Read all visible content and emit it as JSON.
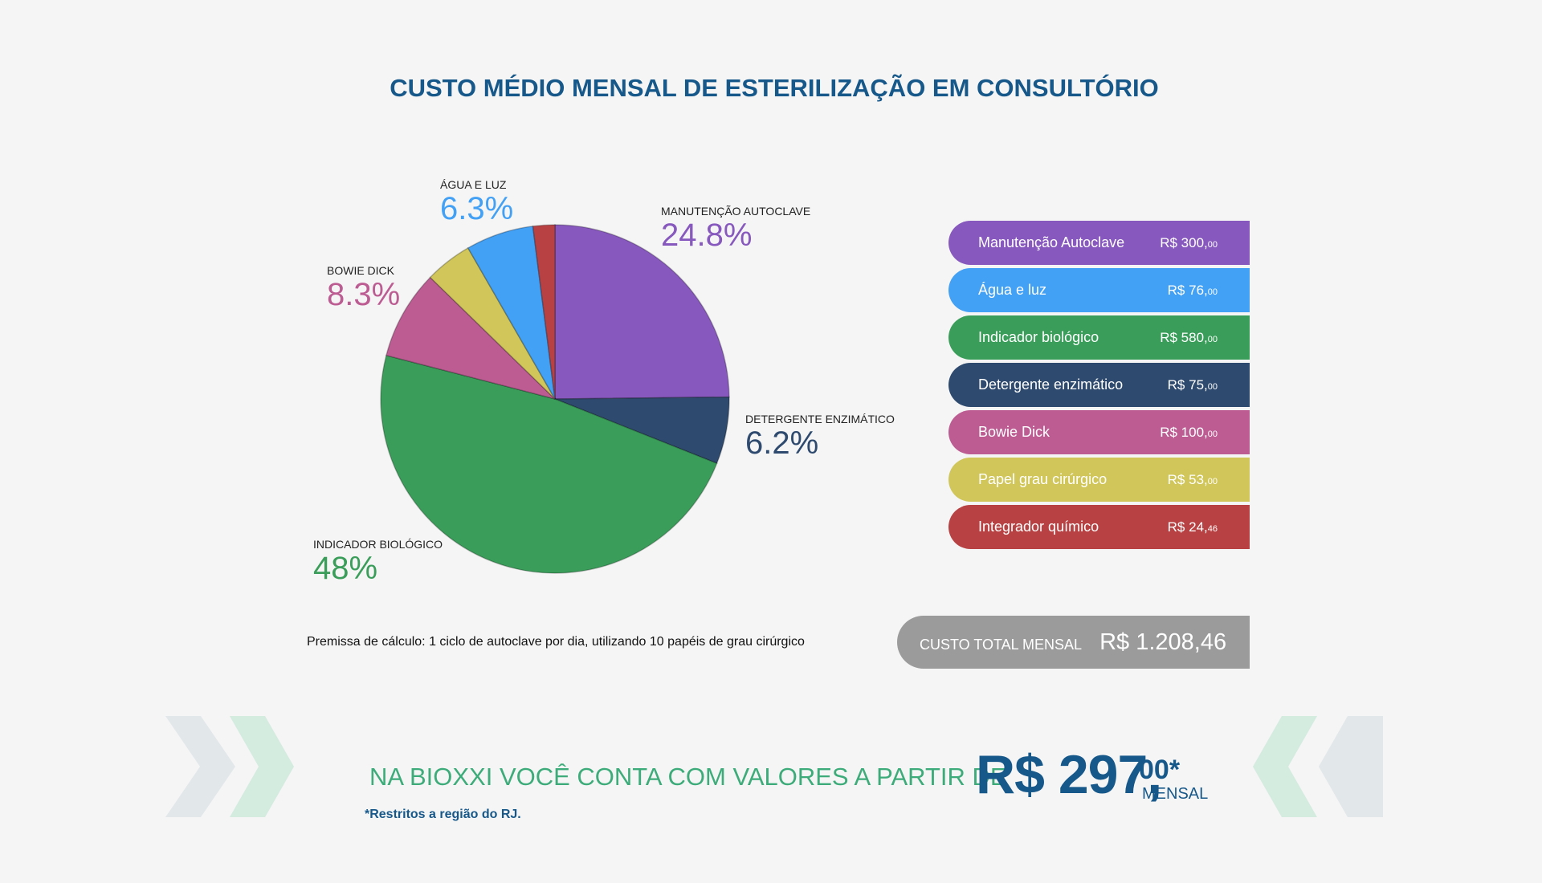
{
  "title": "CUSTO MÉDIO MENSAL DE ESTERILIZAÇÃO EM CONSULTÓRIO",
  "chart_data": {
    "type": "pie",
    "title": "CUSTO MÉDIO MENSAL DE ESTERILIZAÇÃO EM CONSULTÓRIO",
    "slices": [
      {
        "label": "Manutenção Autoclave",
        "value": 300.0,
        "percent": 24.8,
        "color": "#8758bd"
      },
      {
        "label": "Detergente enzimático",
        "value": 75.0,
        "percent": 6.2,
        "color": "#2e4a6e"
      },
      {
        "label": "Indicador biológico",
        "value": 580.0,
        "percent": 48,
        "color": "#3a9e5a"
      },
      {
        "label": "Bowie Dick",
        "value": 100.0,
        "percent": 8.3,
        "color": "#bc5c93"
      },
      {
        "label": "Papel grau cirúrgico",
        "value": 53.0,
        "percent": 4.4,
        "color": "#d0c65a"
      },
      {
        "label": "Água e luz",
        "value": 76.0,
        "percent": 6.3,
        "color": "#42a0f5"
      },
      {
        "label": "Integrador químico",
        "value": 24.46,
        "percent": 2.0,
        "color": "#b84243"
      }
    ]
  },
  "pie_labels": {
    "agua": {
      "caption": "ÁGUA E LUZ",
      "pct": "6.3%"
    },
    "manutencao": {
      "caption": "MANUTENÇÃO AUTOCLAVE",
      "pct": "24.8%"
    },
    "bowie": {
      "caption": "BOWIE DICK",
      "pct": "8.3%"
    },
    "detergente": {
      "caption": "DETERGENTE ENZIMÁTICO",
      "pct": "6.2%"
    },
    "indicador": {
      "caption": "INDICADOR BIOLÓGICO",
      "pct": "48%"
    }
  },
  "legend": [
    {
      "name": "Manutenção Autoclave",
      "value": "R$ 300,",
      "cents": "00",
      "color": "#8758bd"
    },
    {
      "name": "Água e luz",
      "value": "R$ 76,",
      "cents": "00",
      "color": "#42a0f5"
    },
    {
      "name": "Indicador biológico",
      "value": "R$ 580,",
      "cents": "00",
      "color": "#3a9e5a"
    },
    {
      "name": "Detergente enzimático",
      "value": "R$ 75,",
      "cents": "00",
      "color": "#2e4a6e"
    },
    {
      "name": "Bowie Dick",
      "value": "R$ 100,",
      "cents": "00",
      "color": "#bc5c93"
    },
    {
      "name": "Papel grau cirúrgico",
      "value": "R$ 53,",
      "cents": "00",
      "color": "#d0c65a"
    },
    {
      "name": "Integrador químico",
      "value": "R$ 24,",
      "cents": "46",
      "color": "#b84243"
    }
  ],
  "premise": "Premissa de cálculo: 1 ciclo de autoclave por dia, utilizando 10 papéis de grau cirúrgico",
  "total": {
    "label": "CUSTO TOTAL MENSAL",
    "value": "R$ 1.208,46"
  },
  "promo": {
    "text": "NA BIOXXI VOCÊ CONTA COM VALORES A PARTIR DE",
    "price": "R$ 297,",
    "cents": "00*",
    "period": "MENSAL",
    "note": "*Restritos a região do RJ."
  },
  "colors": {
    "title": "#17588a",
    "promo": "#3dac7a",
    "deco_gray": "#e2e7ea",
    "deco_green": "#d4ebdf"
  }
}
